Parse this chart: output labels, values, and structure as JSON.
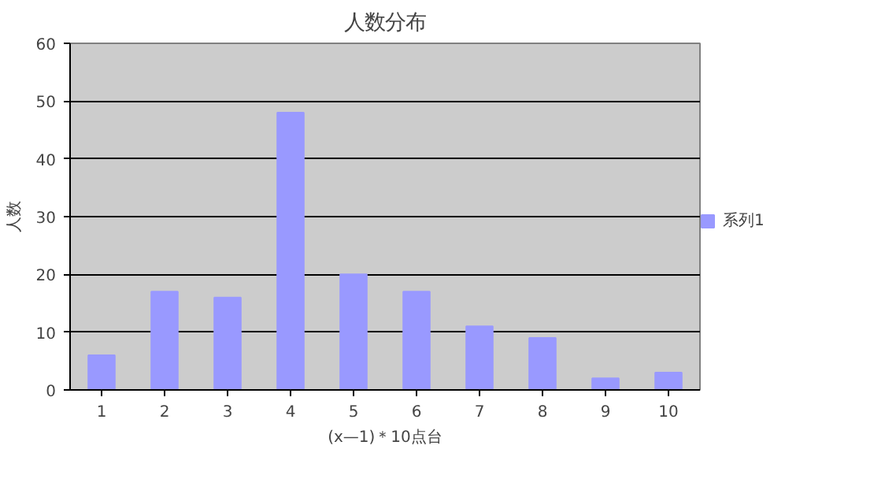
{
  "chart_data": {
    "type": "bar",
    "title": "人数分布",
    "xlabel": "(x—1)＊10点台",
    "ylabel": "人数",
    "categories": [
      "1",
      "2",
      "3",
      "4",
      "5",
      "6",
      "7",
      "8",
      "9",
      "10"
    ],
    "series": [
      {
        "name": "系列1",
        "color": "#9999ff",
        "values": [
          6,
          17,
          16,
          48,
          20,
          17,
          11,
          9,
          2,
          3
        ]
      }
    ],
    "ylim": [
      0,
      60
    ],
    "yticks": [
      0,
      10,
      20,
      30,
      40,
      50,
      60
    ],
    "grid": "y",
    "legend": "right"
  }
}
